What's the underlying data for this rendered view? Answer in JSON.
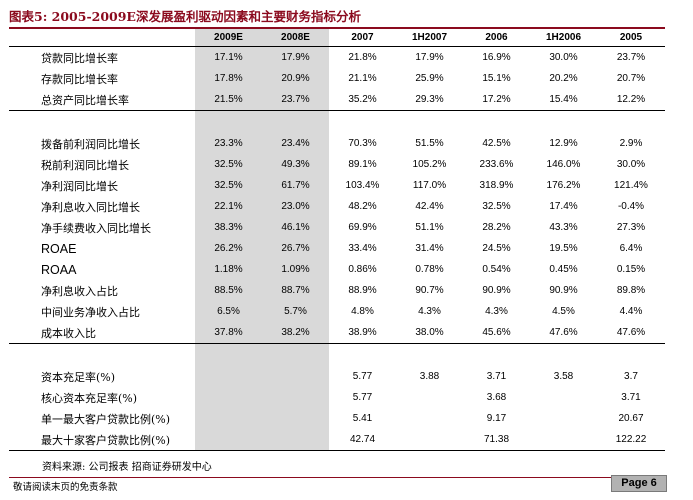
{
  "title": "图表5: 2005-2009E深发展盈利驱动因素和主要财务指标分析",
  "columns": [
    "2009E",
    "2008E",
    "2007",
    "1H2007",
    "2006",
    "1H2006",
    "2005"
  ],
  "rows": [
    {
      "label": "贷款同比增长率",
      "values": [
        "17.1%",
        "17.9%",
        "21.8%",
        "17.9%",
        "16.9%",
        "30.0%",
        "23.7%"
      ]
    },
    {
      "label": "存款同比增长率",
      "values": [
        "17.8%",
        "20.9%",
        "21.1%",
        "25.9%",
        "15.1%",
        "20.2%",
        "20.7%"
      ]
    },
    {
      "label": "总资产同比增长率",
      "values": [
        "21.5%",
        "23.7%",
        "35.2%",
        "29.3%",
        "17.2%",
        "15.4%",
        "12.2%"
      ]
    },
    {
      "label": "",
      "values": [
        "",
        "",
        "",
        "",
        "",
        "",
        ""
      ]
    },
    {
      "label": "拨备前利润同比增长",
      "values": [
        "23.3%",
        "23.4%",
        "70.3%",
        "51.5%",
        "42.5%",
        "12.9%",
        "2.9%"
      ]
    },
    {
      "label": "税前利润同比增长",
      "values": [
        "32.5%",
        "49.3%",
        "89.1%",
        "105.2%",
        "233.6%",
        "146.0%",
        "30.0%"
      ]
    },
    {
      "label": "净利润同比增长",
      "values": [
        "32.5%",
        "61.7%",
        "103.4%",
        "117.0%",
        "318.9%",
        "176.2%",
        "121.4%"
      ]
    },
    {
      "label": "净利息收入同比增长",
      "values": [
        "22.1%",
        "23.0%",
        "48.2%",
        "42.4%",
        "32.5%",
        "17.4%",
        "-0.4%"
      ]
    },
    {
      "label": "净手续费收入同比增长",
      "values": [
        "38.3%",
        "46.1%",
        "69.9%",
        "51.1%",
        "28.2%",
        "43.3%",
        "27.3%"
      ]
    },
    {
      "label": "ROAE",
      "values": [
        "26.2%",
        "26.7%",
        "33.4%",
        "31.4%",
        "24.5%",
        "19.5%",
        "6.4%"
      ]
    },
    {
      "label": "ROAA",
      "values": [
        "1.18%",
        "1.09%",
        "0.86%",
        "0.78%",
        "0.54%",
        "0.45%",
        "0.15%"
      ]
    },
    {
      "label": "净利息收入占比",
      "values": [
        "88.5%",
        "88.7%",
        "88.9%",
        "90.7%",
        "90.9%",
        "90.9%",
        "89.8%"
      ]
    },
    {
      "label": "中间业务净收入占比",
      "values": [
        "6.5%",
        "5.7%",
        "4.8%",
        "4.3%",
        "4.3%",
        "4.5%",
        "4.4%"
      ]
    },
    {
      "label": "成本收入比",
      "values": [
        "37.8%",
        "38.2%",
        "38.9%",
        "38.0%",
        "45.6%",
        "47.6%",
        "47.6%"
      ]
    },
    {
      "label": "",
      "values": [
        "",
        "",
        "",
        "",
        "",
        "",
        ""
      ]
    },
    {
      "label": "资本充足率(%)",
      "values": [
        "",
        "",
        "5.77",
        "3.88",
        "3.71",
        "3.58",
        "3.7"
      ]
    },
    {
      "label": "核心资本充足率(%)",
      "values": [
        "",
        "",
        "5.77",
        "",
        "3.68",
        "",
        "3.71"
      ]
    },
    {
      "label": "单一最大客户贷款比例(%)",
      "values": [
        "",
        "",
        "5.41",
        "",
        "9.17",
        "",
        "20.67"
      ]
    },
    {
      "label": "最大十家客户贷款比例(%)",
      "values": [
        "",
        "",
        "42.74",
        "",
        "71.38",
        "",
        "122.22"
      ]
    }
  ],
  "source": "资料来源: 公司报表 招商证券研发中心",
  "footer_note": "敬请阅读末页的免责条款",
  "page_label": "Page 6"
}
